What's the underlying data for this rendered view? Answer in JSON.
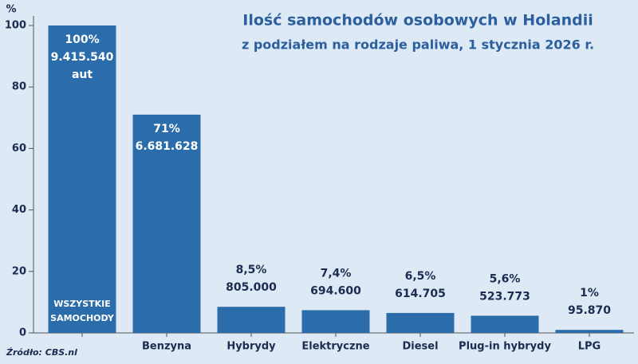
{
  "chart_data": {
    "type": "bar",
    "title": "Ilość samochodów osobowych w Holandii",
    "subtitle": "z podziałem na rodzaje paliwa, 1 stycznia 2026 r.",
    "y_label": "%",
    "source": "Źródło: CBS.nl",
    "categories": [
      null,
      "Benzyna",
      "Hybrydy",
      "Elektryczne",
      "Diesel",
      "Plug-in hybrydy",
      "LPG"
    ],
    "inside_label": [
      "WSZYSTKIE",
      "SAMOCHODY"
    ],
    "values": [
      100,
      71,
      8.5,
      7.4,
      6.5,
      5.6,
      1
    ],
    "value_labels": [
      "100%",
      "71%",
      "8,5%",
      "7,4%",
      "6,5%",
      "5,6%",
      "1%"
    ],
    "counts": [
      9415540,
      6681628,
      805000,
      694600,
      614705,
      523773,
      95870
    ],
    "count_labels": [
      "9.415.540",
      "6.681.628",
      "805.000",
      "694.600",
      "614.705",
      "523.773",
      "95.870"
    ],
    "count_unit": "aut",
    "color": "#2b6cab",
    "ylim": [
      0,
      100
    ],
    "yticks": [
      0,
      20,
      40,
      60,
      80,
      100
    ]
  }
}
